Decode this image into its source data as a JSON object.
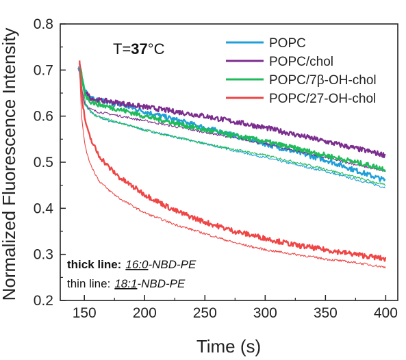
{
  "chart_data": {
    "type": "line",
    "xlabel": "Time (s)",
    "ylabel": "Normalized Fluorescence Intensity",
    "xlim": [
      130,
      410
    ],
    "ylim": [
      0.2,
      0.8
    ],
    "x_ticks": [
      "150",
      "200",
      "250",
      "300",
      "350",
      "400"
    ],
    "y_ticks": [
      "0.2",
      "0.3",
      "0.4",
      "0.5",
      "0.6",
      "0.7",
      "0.8"
    ],
    "grid": false,
    "legend_position": "top-right",
    "temperature_annotation": {
      "prefix": "T=",
      "value": "37",
      "unit_suffix": "°C"
    },
    "line_note": {
      "thick_label": "thick line:",
      "thick_lipid": "16:0",
      "thick_rest": "-NBD-PE",
      "thin_label": "thin line:",
      "thin_lipid": "18:1",
      "thin_rest": "-NBD-PE"
    },
    "series": [
      {
        "name": "POPC",
        "color": "#1e9fd8",
        "thick": {
          "x": [
            145,
            147,
            150,
            155,
            160,
            170,
            180,
            200,
            250,
            300,
            350,
            400
          ],
          "y": [
            0.71,
            0.69,
            0.655,
            0.64,
            0.635,
            0.63,
            0.625,
            0.61,
            0.575,
            0.54,
            0.505,
            0.46
          ]
        },
        "thin": {
          "x": [
            145,
            147,
            150,
            155,
            160,
            170,
            180,
            200,
            250,
            300,
            350,
            400
          ],
          "y": [
            0.71,
            0.67,
            0.625,
            0.61,
            0.6,
            0.59,
            0.585,
            0.57,
            0.54,
            0.51,
            0.48,
            0.445
          ]
        }
      },
      {
        "name": "POPC/chol",
        "color": "#7b2d8e",
        "thick": {
          "x": [
            146,
            148,
            150,
            155,
            160,
            170,
            180,
            200,
            250,
            300,
            350,
            400
          ],
          "y": [
            0.71,
            0.68,
            0.655,
            0.64,
            0.635,
            0.632,
            0.628,
            0.62,
            0.6,
            0.575,
            0.545,
            0.515
          ]
        },
        "thin": {
          "x": [
            146,
            148,
            150,
            155,
            160,
            170,
            180,
            200,
            250,
            300,
            350,
            400
          ],
          "y": [
            0.7,
            0.66,
            0.63,
            0.615,
            0.61,
            0.605,
            0.6,
            0.59,
            0.565,
            0.54,
            0.51,
            0.48
          ]
        }
      },
      {
        "name": "POPC/7β-OH-chol",
        "color": "#1fbb5a",
        "thick": {
          "x": [
            147,
            149,
            151,
            155,
            160,
            170,
            180,
            200,
            250,
            300,
            350,
            400
          ],
          "y": [
            0.7,
            0.67,
            0.645,
            0.632,
            0.627,
            0.62,
            0.614,
            0.6,
            0.57,
            0.545,
            0.515,
            0.485
          ]
        },
        "thin": {
          "x": [
            147,
            149,
            151,
            155,
            160,
            170,
            180,
            200,
            250,
            300,
            350,
            400
          ],
          "y": [
            0.7,
            0.66,
            0.625,
            0.61,
            0.6,
            0.592,
            0.585,
            0.57,
            0.54,
            0.515,
            0.485,
            0.45
          ]
        }
      },
      {
        "name": "POPC/27-OH-chol",
        "color": "#f04545",
        "thick": {
          "x": [
            146,
            147,
            148,
            150,
            153,
            157,
            162,
            170,
            180,
            200,
            225,
            250,
            275,
            300,
            325,
            350,
            375,
            400
          ],
          "y": [
            0.72,
            0.68,
            0.64,
            0.6,
            0.565,
            0.54,
            0.515,
            0.49,
            0.465,
            0.43,
            0.395,
            0.37,
            0.35,
            0.335,
            0.32,
            0.31,
            0.3,
            0.29
          ]
        },
        "thin": {
          "x": [
            146,
            147,
            148,
            150,
            153,
            157,
            162,
            170,
            180,
            200,
            225,
            250,
            275,
            300,
            325,
            350,
            375,
            400
          ],
          "y": [
            0.71,
            0.64,
            0.59,
            0.545,
            0.51,
            0.485,
            0.46,
            0.44,
            0.42,
            0.39,
            0.365,
            0.345,
            0.325,
            0.31,
            0.3,
            0.29,
            0.282,
            0.272
          ]
        }
      }
    ]
  }
}
